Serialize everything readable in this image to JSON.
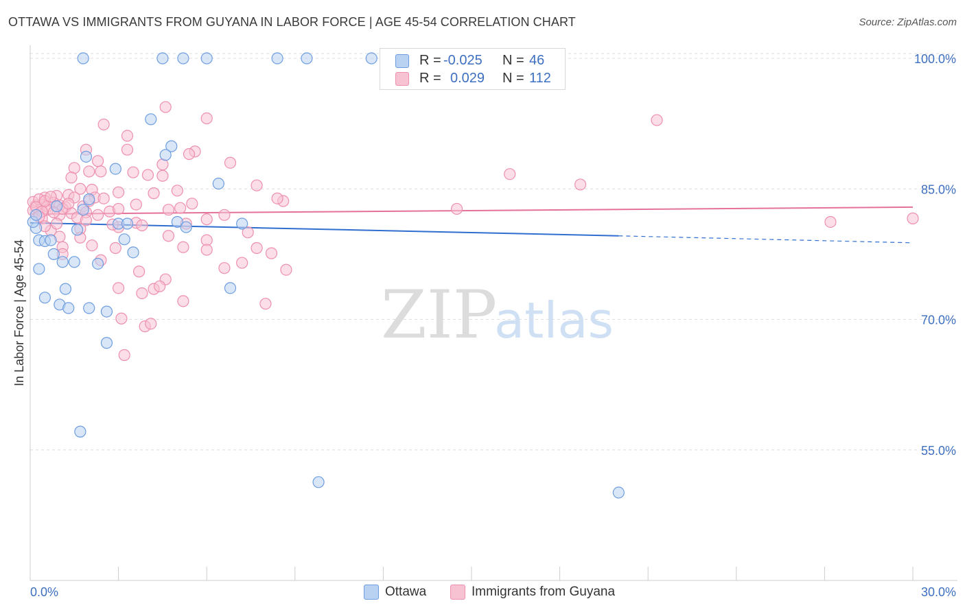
{
  "title": "OTTAWA VS IMMIGRANTS FROM GUYANA IN LABOR FORCE | AGE 45-54 CORRELATION CHART",
  "source": "Source: ZipAtlas.com",
  "watermark": {
    "zip": "ZIP",
    "atlas": "atlas"
  },
  "legend": {
    "series1": {
      "r_label": "R =",
      "r_value": "-0.025",
      "n_label": "N =",
      "n_value": "46"
    },
    "series2": {
      "r_label": "R =",
      "r_value": "0.029",
      "n_label": "N =",
      "n_value": "112"
    }
  },
  "bottom_legend": {
    "series1": "Ottawa",
    "series2": "Immigrants from Guyana"
  },
  "colors": {
    "ottawa_fill": "#b9d2f2",
    "ottawa_stroke": "#6d9de0",
    "ottawa_line": "#2f6ecf",
    "guyana_fill": "#f7c3d3",
    "guyana_stroke": "#ee8fae",
    "guyana_line": "#e4719b",
    "axis_label": "#3d6fc0",
    "grid": "#dddddd"
  },
  "chart_data": {
    "type": "scatter",
    "xlabel": "",
    "ylabel": "In Labor Force | Age 45-54",
    "x_range": [
      0.0,
      30.0
    ],
    "y_range": [
      40.0,
      101.5
    ],
    "x_tick_labels": [
      "0.0%",
      "30.0%"
    ],
    "y_ticks": [
      55.0,
      70.0,
      85.0,
      100.0
    ],
    "y_tick_labels": [
      "55.0%",
      "70.0%",
      "85.0%",
      "100.0%"
    ],
    "series": [
      {
        "name": "Ottawa",
        "trend": {
          "x0": 0.0,
          "y0": 81.1,
          "x1": 20.0,
          "y1": 79.6,
          "dash_x1": 30.0,
          "dash_y1": 78.8
        },
        "points": [
          [
            1.8,
            100.0
          ],
          [
            4.5,
            100.0
          ],
          [
            5.2,
            100.0
          ],
          [
            6.0,
            100.0
          ],
          [
            8.4,
            100.0
          ],
          [
            9.4,
            100.0
          ],
          [
            11.6,
            100.0
          ],
          [
            4.1,
            93.0
          ],
          [
            4.8,
            89.9
          ],
          [
            4.6,
            88.9
          ],
          [
            1.9,
            88.7
          ],
          [
            2.9,
            87.3
          ],
          [
            6.4,
            85.6
          ],
          [
            2.0,
            83.8
          ],
          [
            3.0,
            81.0
          ],
          [
            3.3,
            81.0
          ],
          [
            5.0,
            81.2
          ],
          [
            7.2,
            81.0
          ],
          [
            0.2,
            80.5
          ],
          [
            1.6,
            80.3
          ],
          [
            5.3,
            80.6
          ],
          [
            0.3,
            79.1
          ],
          [
            0.5,
            79.0
          ],
          [
            0.7,
            79.1
          ],
          [
            3.2,
            79.2
          ],
          [
            0.8,
            77.5
          ],
          [
            3.5,
            77.7
          ],
          [
            1.1,
            76.6
          ],
          [
            1.5,
            76.6
          ],
          [
            2.3,
            76.4
          ],
          [
            0.3,
            75.8
          ],
          [
            1.2,
            73.5
          ],
          [
            6.8,
            73.6
          ],
          [
            0.5,
            72.5
          ],
          [
            1.0,
            71.7
          ],
          [
            1.3,
            71.3
          ],
          [
            2.0,
            71.3
          ],
          [
            2.6,
            70.9
          ],
          [
            2.6,
            67.3
          ],
          [
            1.7,
            57.1
          ],
          [
            9.8,
            51.3
          ],
          [
            20.0,
            50.1
          ],
          [
            0.1,
            81.2
          ],
          [
            0.2,
            82.0
          ],
          [
            1.8,
            82.6
          ],
          [
            0.9,
            83.0
          ]
        ]
      },
      {
        "name": "Immigrants from Guyana",
        "trend": {
          "x0": 0.0,
          "y0": 82.1,
          "x1": 30.0,
          "y1": 82.9
        },
        "points": [
          [
            4.6,
            94.4
          ],
          [
            6.0,
            93.1
          ],
          [
            2.5,
            92.4
          ],
          [
            21.3,
            92.9
          ],
          [
            3.3,
            91.1
          ],
          [
            3.3,
            89.5
          ],
          [
            5.6,
            89.3
          ],
          [
            1.9,
            89.5
          ],
          [
            5.4,
            89.0
          ],
          [
            2.3,
            88.2
          ],
          [
            4.5,
            87.8
          ],
          [
            6.8,
            88.0
          ],
          [
            1.5,
            87.4
          ],
          [
            2.0,
            87.0
          ],
          [
            2.4,
            87.0
          ],
          [
            3.5,
            86.9
          ],
          [
            4.0,
            86.6
          ],
          [
            4.5,
            86.5
          ],
          [
            16.3,
            86.7
          ],
          [
            1.4,
            86.3
          ],
          [
            7.7,
            85.4
          ],
          [
            18.7,
            85.5
          ],
          [
            1.7,
            85.0
          ],
          [
            2.1,
            84.9
          ],
          [
            3.0,
            84.6
          ],
          [
            4.2,
            84.5
          ],
          [
            5.0,
            84.8
          ],
          [
            0.5,
            84.0
          ],
          [
            0.9,
            84.2
          ],
          [
            1.3,
            84.3
          ],
          [
            2.2,
            84.0
          ],
          [
            8.6,
            83.6
          ],
          [
            8.4,
            83.9
          ],
          [
            0.2,
            83.1
          ],
          [
            0.4,
            83.2
          ],
          [
            0.6,
            83.0
          ],
          [
            0.8,
            83.4
          ],
          [
            1.0,
            83.1
          ],
          [
            1.2,
            82.9
          ],
          [
            1.8,
            83.0
          ],
          [
            3.6,
            83.2
          ],
          [
            5.5,
            83.3
          ],
          [
            14.5,
            82.7
          ],
          [
            0.1,
            82.5
          ],
          [
            0.3,
            82.2
          ],
          [
            0.6,
            82.6
          ],
          [
            1.0,
            82.0
          ],
          [
            1.4,
            82.2
          ],
          [
            1.9,
            82.3
          ],
          [
            2.3,
            82.0
          ],
          [
            2.7,
            82.4
          ],
          [
            3.0,
            82.7
          ],
          [
            4.7,
            82.6
          ],
          [
            5.1,
            82.8
          ],
          [
            6.6,
            82.0
          ],
          [
            0.4,
            81.6
          ],
          [
            1.6,
            81.7
          ],
          [
            3.6,
            81.1
          ],
          [
            5.3,
            81.0
          ],
          [
            27.2,
            81.2
          ],
          [
            30.0,
            81.6
          ],
          [
            0.7,
            80.2
          ],
          [
            1.7,
            80.4
          ],
          [
            3.0,
            80.6
          ],
          [
            3.8,
            80.8
          ],
          [
            7.4,
            80.0
          ],
          [
            1.0,
            79.5
          ],
          [
            1.7,
            79.4
          ],
          [
            4.7,
            79.6
          ],
          [
            6.0,
            79.1
          ],
          [
            1.1,
            78.3
          ],
          [
            2.1,
            78.5
          ],
          [
            2.9,
            78.2
          ],
          [
            5.2,
            78.3
          ],
          [
            6.0,
            78.0
          ],
          [
            7.7,
            78.2
          ],
          [
            8.2,
            77.6
          ],
          [
            1.1,
            77.5
          ],
          [
            2.4,
            76.8
          ],
          [
            7.2,
            76.5
          ],
          [
            3.7,
            75.5
          ],
          [
            6.6,
            75.9
          ],
          [
            8.7,
            75.7
          ],
          [
            4.6,
            74.6
          ],
          [
            3.0,
            73.6
          ],
          [
            4.2,
            73.5
          ],
          [
            4.4,
            73.8
          ],
          [
            3.8,
            73.0
          ],
          [
            5.2,
            72.1
          ],
          [
            8.0,
            71.8
          ],
          [
            3.1,
            70.1
          ],
          [
            3.9,
            69.2
          ],
          [
            4.1,
            69.5
          ],
          [
            3.2,
            65.9
          ],
          [
            0.1,
            83.5
          ],
          [
            0.3,
            83.8
          ],
          [
            0.5,
            83.6
          ],
          [
            0.7,
            84.1
          ],
          [
            1.5,
            84.0
          ],
          [
            2.0,
            83.6
          ],
          [
            0.2,
            82.9
          ],
          [
            0.4,
            82.4
          ],
          [
            1.1,
            82.7
          ],
          [
            1.3,
            83.3
          ],
          [
            0.8,
            82.3
          ],
          [
            2.5,
            83.9
          ],
          [
            0.5,
            80.7
          ],
          [
            0.9,
            81.0
          ],
          [
            2.8,
            80.9
          ],
          [
            6.0,
            81.5
          ],
          [
            0.3,
            81.8
          ],
          [
            1.9,
            81.4
          ]
        ]
      }
    ]
  }
}
